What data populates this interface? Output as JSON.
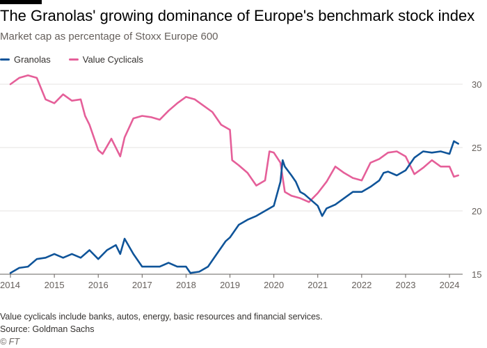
{
  "colors": {
    "granolas": "#0f5499",
    "value_cyclicals": "#e55f99",
    "grid": "#e6e3e0",
    "axis": "#66605c"
  },
  "title": "The Granolas' growing dominance of Europe's benchmark stock index",
  "subtitle": "Market cap as percentage of Stoxx Europe 600",
  "note": "Value cyclicals include banks, autos, energy, basic resources and financial services.",
  "source": "Source: Goldman Sachs",
  "credit": "© FT",
  "chart_data": {
    "type": "line",
    "title": "The Granolas' growing dominance of Europe's benchmark stock index",
    "subtitle": "Market cap as percentage of Stoxx Europe 600",
    "xlabel": "",
    "ylabel": "",
    "xlim": [
      2014.0,
      2024.3
    ],
    "ylim": [
      15,
      30
    ],
    "yticks": [
      15,
      20,
      25,
      30
    ],
    "xticks": [
      2014,
      2015,
      2016,
      2017,
      2018,
      2019,
      2020,
      2021,
      2022,
      2023,
      2024
    ],
    "xtick_labels": [
      "2014",
      "2015",
      "2016",
      "2017",
      "2018",
      "2019",
      "2020",
      "2021",
      "2022",
      "2023",
      "2024"
    ],
    "grid": true,
    "legend_position": "top-left",
    "series": [
      {
        "name": "Granolas",
        "color": "#0f5499",
        "x": [
          2014.0,
          2014.2,
          2014.4,
          2014.6,
          2014.8,
          2015.0,
          2015.2,
          2015.4,
          2015.6,
          2015.8,
          2016.0,
          2016.2,
          2016.4,
          2016.5,
          2016.6,
          2016.8,
          2017.0,
          2017.2,
          2017.4,
          2017.6,
          2017.8,
          2018.0,
          2018.1,
          2018.3,
          2018.5,
          2018.7,
          2018.9,
          2019.0,
          2019.2,
          2019.4,
          2019.6,
          2019.8,
          2020.0,
          2020.15,
          2020.2,
          2020.25,
          2020.4,
          2020.5,
          2020.6,
          2020.7,
          2020.8,
          2021.0,
          2021.1,
          2021.2,
          2021.4,
          2021.6,
          2021.8,
          2022.0,
          2022.2,
          2022.4,
          2022.5,
          2022.6,
          2022.8,
          2023.0,
          2023.2,
          2023.4,
          2023.6,
          2023.8,
          2024.0,
          2024.1,
          2024.2
        ],
        "values": [
          15.1,
          15.5,
          15.6,
          16.2,
          16.3,
          16.6,
          16.3,
          16.6,
          16.3,
          16.9,
          16.2,
          16.9,
          17.3,
          16.6,
          17.8,
          16.6,
          15.6,
          15.6,
          15.6,
          15.9,
          15.6,
          15.6,
          15.1,
          15.2,
          15.6,
          16.6,
          17.6,
          17.9,
          18.9,
          19.3,
          19.6,
          20.0,
          20.4,
          22.3,
          24.0,
          23.5,
          22.8,
          22.3,
          21.5,
          21.3,
          21.0,
          20.4,
          19.6,
          20.2,
          20.5,
          21.0,
          21.5,
          21.5,
          21.9,
          22.4,
          23.0,
          23.1,
          22.8,
          23.2,
          24.2,
          24.7,
          24.6,
          24.7,
          24.5,
          25.5,
          25.3
        ]
      },
      {
        "name": "Value Cyclicals",
        "color": "#e55f99",
        "x": [
          2014.0,
          2014.2,
          2014.4,
          2014.6,
          2014.8,
          2015.0,
          2015.2,
          2015.4,
          2015.6,
          2015.7,
          2015.8,
          2016.0,
          2016.1,
          2016.3,
          2016.5,
          2016.6,
          2016.8,
          2017.0,
          2017.2,
          2017.4,
          2017.6,
          2017.8,
          2018.0,
          2018.2,
          2018.4,
          2018.6,
          2018.8,
          2019.0,
          2019.05,
          2019.2,
          2019.4,
          2019.6,
          2019.8,
          2019.9,
          2020.0,
          2020.15,
          2020.25,
          2020.4,
          2020.6,
          2020.8,
          2021.0,
          2021.2,
          2021.4,
          2021.6,
          2021.8,
          2022.0,
          2022.2,
          2022.4,
          2022.6,
          2022.8,
          2023.0,
          2023.2,
          2023.4,
          2023.6,
          2023.8,
          2024.0,
          2024.1,
          2024.2
        ],
        "values": [
          30.0,
          30.5,
          30.7,
          30.5,
          28.8,
          28.5,
          29.2,
          28.7,
          28.8,
          27.5,
          26.8,
          24.8,
          24.5,
          25.7,
          24.3,
          25.8,
          27.3,
          27.5,
          27.4,
          27.2,
          27.9,
          28.5,
          29.0,
          28.8,
          28.3,
          27.8,
          26.8,
          26.4,
          24.0,
          23.6,
          23.0,
          22.0,
          22.4,
          24.7,
          24.6,
          23.8,
          21.5,
          21.2,
          21.0,
          20.7,
          21.4,
          22.3,
          23.5,
          23.0,
          22.6,
          22.4,
          23.8,
          24.1,
          24.6,
          24.7,
          24.3,
          22.9,
          23.4,
          24.0,
          23.5,
          23.5,
          22.7,
          22.8
        ]
      }
    ]
  }
}
